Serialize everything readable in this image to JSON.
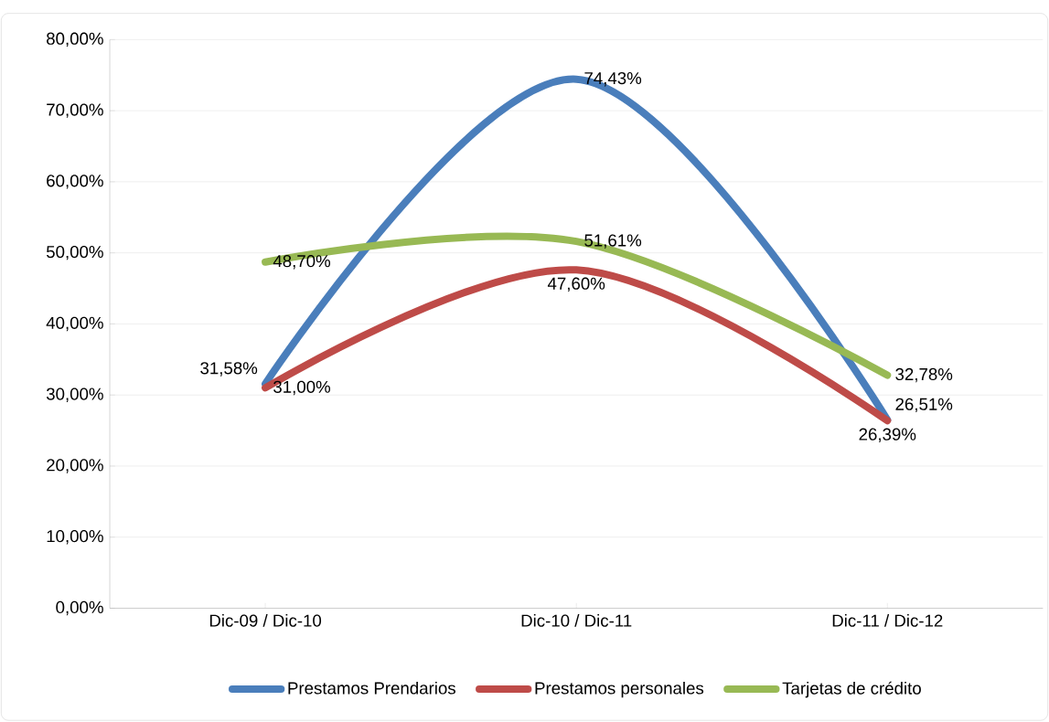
{
  "chart_data": {
    "type": "line",
    "categories": [
      "Dic-09 / Dic-10",
      "Dic-10 / Dic-11",
      "Dic-11 / Dic-12"
    ],
    "series": [
      {
        "name": "Prestamos Prendarios",
        "color": "#4a7ebb",
        "values": [
          31.58,
          74.43,
          26.51
        ],
        "value_labels": [
          "31,58%",
          "74,43%",
          "26,51%"
        ]
      },
      {
        "name": "Prestamos personales",
        "color": "#be4b48",
        "values": [
          31.0,
          47.6,
          26.39
        ],
        "value_labels": [
          "31,00%",
          "47,60%",
          "26,39%"
        ]
      },
      {
        "name": "Tarjetas de crédito",
        "color": "#98b954",
        "values": [
          48.7,
          51.61,
          32.78
        ],
        "value_labels": [
          "48,70%",
          "51,61%",
          "32,78%"
        ]
      }
    ],
    "ylim": [
      0,
      80
    ],
    "yticks": [
      {
        "value": 0,
        "label": "0,00%"
      },
      {
        "value": 10,
        "label": "10,00%"
      },
      {
        "value": 20,
        "label": "20,00%"
      },
      {
        "value": 30,
        "label": "30,00%"
      },
      {
        "value": 40,
        "label": "40,00%"
      },
      {
        "value": 50,
        "label": "50,00%"
      },
      {
        "value": 60,
        "label": "60,00%"
      },
      {
        "value": 70,
        "label": "70,00%"
      },
      {
        "value": 80,
        "label": "80,00%"
      }
    ],
    "grid": "y",
    "legend": "bottom",
    "marker": "none",
    "line_style": "solid"
  }
}
